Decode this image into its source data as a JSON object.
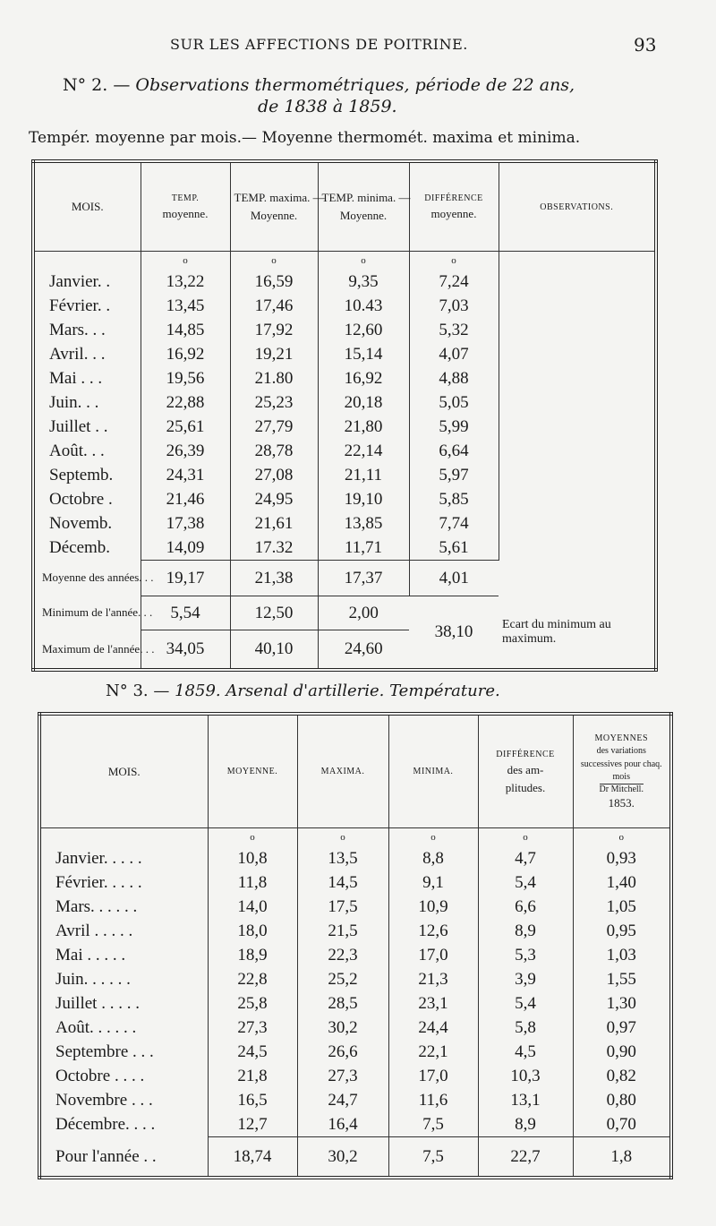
{
  "header": {
    "running_title": "SUR LES AFFECTIONS DE POITRINE.",
    "page_number": "93"
  },
  "table1": {
    "number": "N° 2. —",
    "title": "Observations thermométriques, période de 22 ans,",
    "title_line2": "de 1838 à 1859.",
    "subtitle": "Tempér. moyenne par mois.— Moyenne thermomét. maxima et minima.",
    "columns": [
      {
        "top": "MOIS.",
        "bottom": ""
      },
      {
        "top": "TEMP.",
        "bottom": "moyenne."
      },
      {
        "top": "TEMP. maxima. —",
        "bottom": "Moyenne."
      },
      {
        "top": "TEMP. minima. —",
        "bottom": "Moyenne."
      },
      {
        "top": "DIFFÉRENCE",
        "bottom": "moyenne."
      },
      {
        "top": "OBSERVATIONS.",
        "bottom": ""
      }
    ],
    "degree_mark": "o",
    "rows": [
      [
        "Janvier. .",
        "13,22",
        "16,59",
        "9,35",
        "7,24"
      ],
      [
        "Février. .",
        "13,45",
        "17,46",
        "10.43",
        "7,03"
      ],
      [
        "Mars. . .",
        "14,85",
        "17,92",
        "12,60",
        "5,32"
      ],
      [
        "Avril. . .",
        "16,92",
        "19,21",
        "15,14",
        "4,07"
      ],
      [
        "Mai . . .",
        "19,56",
        "21.80",
        "16,92",
        "4,88"
      ],
      [
        "Juin. . .",
        "22,88",
        "25,23",
        "20,18",
        "5,05"
      ],
      [
        "Juillet . .",
        "25,61",
        "27,79",
        "21,80",
        "5,99"
      ],
      [
        "Août. . .",
        "26,39",
        "28,78",
        "22,14",
        "6,64"
      ],
      [
        "Septemb.",
        "24,31",
        "27,08",
        "21,11",
        "5,97"
      ],
      [
        "Octobre .",
        "21,46",
        "24,95",
        "19,10",
        "5,85"
      ],
      [
        "Novemb.",
        "17,38",
        "21,61",
        "13,85",
        "7,74"
      ],
      [
        "Décemb.",
        "14,09",
        "17.32",
        "11,71",
        "5,61"
      ]
    ],
    "average": {
      "label": "Moyenne des années. . .",
      "values": [
        "19,17",
        "21,38",
        "17,37",
        "4,01"
      ]
    },
    "minimum": {
      "label": "Minimum de l'année. . .",
      "values": [
        "5,54",
        "12,50",
        "2,00"
      ]
    },
    "maximum": {
      "label": "Maximum de l'année. . .",
      "values": [
        "34,05",
        "40,10",
        "24,60"
      ]
    },
    "range": {
      "value": "38,10",
      "note": "Ecart du minimum au maximum."
    }
  },
  "table2": {
    "number": "N° 3. —",
    "title": "1859. Arsenal d'artillerie. Température.",
    "columns": [
      "MOIS.",
      "MOYENNE.",
      "MAXIMA.",
      "MINIMA.",
      "DIFFÉRENCE des amplitudes.",
      "MOYENNES des variations successives pour chaq. mois Dr Mitchell. 1853."
    ],
    "col5": {
      "head": "DIFFÉRENCE",
      "sub": "des am- plitudes."
    },
    "col6": {
      "head": "MOYENNES",
      "sub": "des variations successives pour chaq. mois",
      "author": "Dr Mitchell.",
      "year": "1853."
    },
    "degree_mark": "o",
    "rows": [
      [
        "Janvier. . . . .",
        "10,8",
        "13,5",
        "8,8",
        "4,7",
        "0,93"
      ],
      [
        "Février. . . . .",
        "11,8",
        "14,5",
        "9,1",
        "5,4",
        "1,40"
      ],
      [
        "Mars. . . . . .",
        "14,0",
        "17,5",
        "10,9",
        "6,6",
        "1,05"
      ],
      [
        "Avril . . . . .",
        "18,0",
        "21,5",
        "12,6",
        "8,9",
        "0,95"
      ],
      [
        "Mai . . . . .",
        "18,9",
        "22,3",
        "17,0",
        "5,3",
        "1,03"
      ],
      [
        "Juin. . . . . .",
        "22,8",
        "25,2",
        "21,3",
        "3,9",
        "1,55"
      ],
      [
        "Juillet . . . . .",
        "25,8",
        "28,5",
        "23,1",
        "5,4",
        "1,30"
      ],
      [
        "Août. . . . . .",
        "27,3",
        "30,2",
        "24,4",
        "5,8",
        "0,97"
      ],
      [
        "Septembre . . .",
        "24,5",
        "26,6",
        "22,1",
        "4,5",
        "0,90"
      ],
      [
        "Octobre . . . .",
        "21,8",
        "27,3",
        "17,0",
        "10,3",
        "0,82"
      ],
      [
        "Novembre . . .",
        "16,5",
        "24,7",
        "11,6",
        "13,1",
        "0,80"
      ],
      [
        "Décembre. . . .",
        "12,7",
        "16,4",
        "7,5",
        "8,9",
        "0,70"
      ]
    ],
    "total": [
      "Pour l'année . .",
      "18,74",
      "30,2",
      "7,5",
      "22,7",
      "1,8"
    ]
  }
}
